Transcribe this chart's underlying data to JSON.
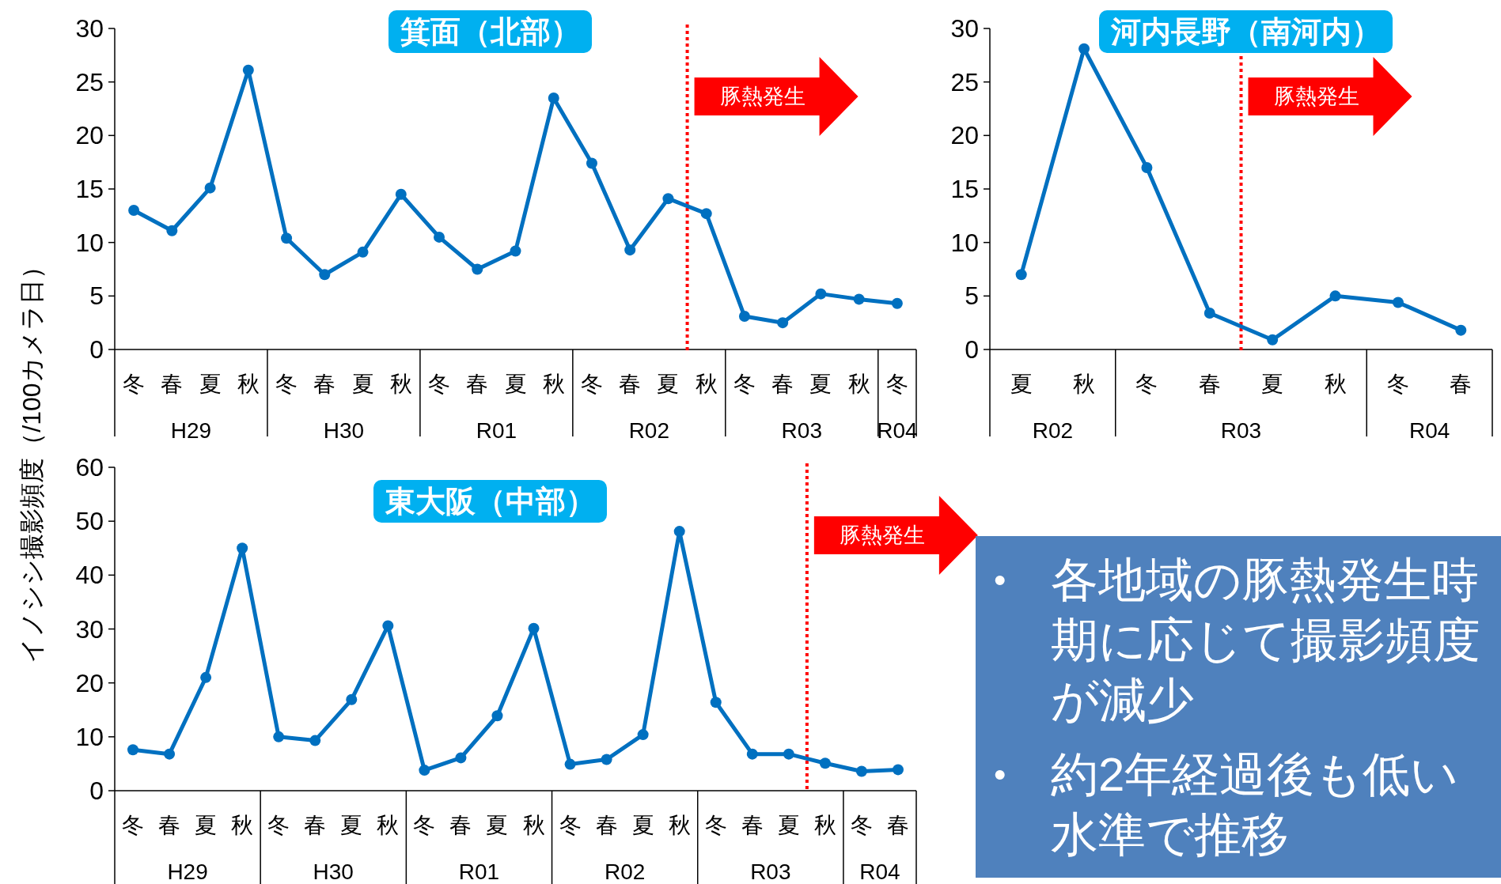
{
  "chart_data": [
    {
      "type": "line",
      "title": "箕面（北部）",
      "ylabel": "イノシシ撮影頻度（/100カメラ日）",
      "categories": [
        "冬",
        "春",
        "夏",
        "秋",
        "冬",
        "春",
        "夏",
        "秋",
        "冬",
        "春",
        "夏",
        "秋",
        "冬",
        "春",
        "夏",
        "秋",
        "冬",
        "春",
        "夏",
        "秋",
        "冬"
      ],
      "series": [
        {
          "color": "#0070c0",
          "values": [
            13.0,
            11.1,
            15.1,
            26.1,
            10.4,
            7.0,
            9.1,
            14.5,
            10.5,
            7.5,
            9.2,
            23.5,
            17.4,
            9.3,
            14.1,
            12.7,
            3.1,
            2.5,
            5.2,
            4.7,
            4.3
          ]
        }
      ],
      "ylim": [
        0,
        30
      ],
      "yticks": [
        0,
        5,
        10,
        15,
        20,
        25,
        30
      ],
      "marker": "circle",
      "line_style": "solid",
      "annotations": [
        "H29",
        "H30",
        "R01",
        "R02",
        "R03",
        "R04",
        "豚熱発生"
      ]
    },
    {
      "type": "line",
      "title": "河内長野（南河内）",
      "categories": [
        "夏",
        "秋",
        "冬",
        "春",
        "夏",
        "秋",
        "冬",
        "春"
      ],
      "series": [
        {
          "color": "#0070c0",
          "values": [
            7.0,
            28.1,
            17.0,
            3.4,
            0.9,
            5.0,
            4.4,
            1.8
          ]
        }
      ],
      "ylim": [
        0,
        30
      ],
      "yticks": [
        0,
        5,
        10,
        15,
        20,
        25,
        30
      ],
      "marker": "circle",
      "line_style": "solid",
      "annotations": [
        "R02",
        "R03",
        "R04",
        "豚熱発生"
      ]
    },
    {
      "type": "line",
      "title": "東大阪（中部）",
      "categories": [
        "冬",
        "春",
        "夏",
        "秋",
        "冬",
        "春",
        "夏",
        "秋",
        "冬",
        "春",
        "夏",
        "秋",
        "冬",
        "春",
        "夏",
        "秋",
        "冬",
        "春",
        "夏",
        "秋",
        "冬",
        "春"
      ],
      "series": [
        {
          "color": "#0070c0",
          "values": [
            7.6,
            6.8,
            21.0,
            45.0,
            10.0,
            9.3,
            16.9,
            30.6,
            3.8,
            6.1,
            13.9,
            30.1,
            4.9,
            5.8,
            10.4,
            48.1,
            16.4,
            6.8,
            6.8,
            5.1,
            3.6,
            3.9
          ]
        }
      ],
      "ylim": [
        0,
        60
      ],
      "yticks": [
        0,
        10,
        20,
        30,
        40,
        50,
        60
      ],
      "marker": "circle",
      "line_style": "solid",
      "annotations": [
        "H29",
        "H30",
        "R01",
        "R02",
        "R03",
        "R04",
        "豚熱発生"
      ]
    },
    {
      "type": "other",
      "annotations": [
        "•",
        "各地域の豚熱発生時期に応じて撮影頻度が減少",
        "•",
        "約2年経過後も低い水準で推移"
      ]
    }
  ]
}
